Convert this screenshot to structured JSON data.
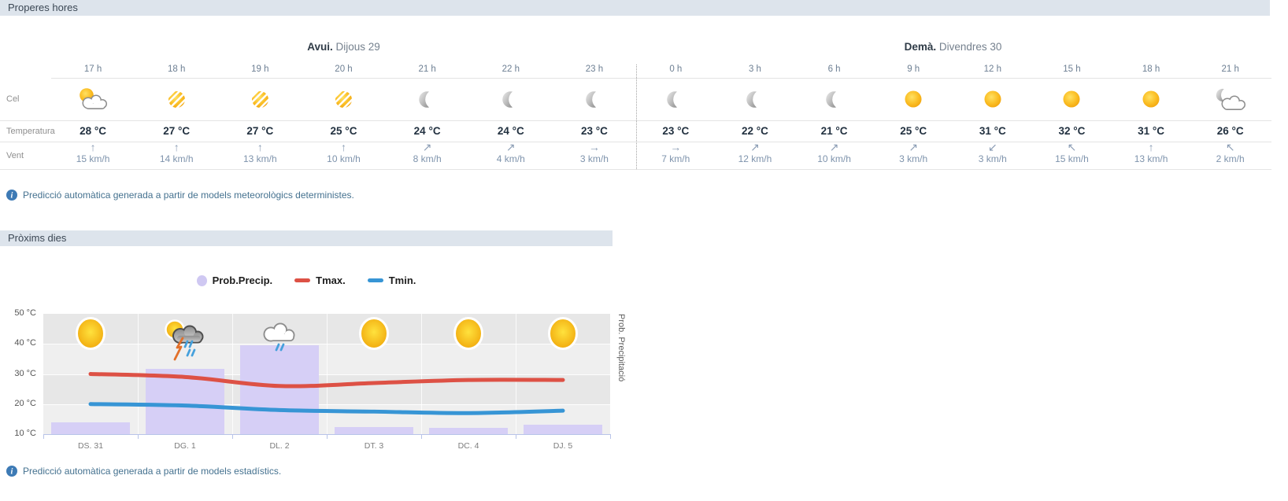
{
  "hourly": {
    "title": "Properes hores",
    "row_labels": {
      "sky": "Cel",
      "temperature": "Temperatura",
      "wind": "Vent"
    },
    "note": {
      "icon": "info",
      "text": "Predicció automàtica generada a partir de models meteorològics deterministes."
    },
    "today": {
      "label_bold": "Avui.",
      "label_rest": " Dijous 29",
      "columns": [
        {
          "hour": "17 h",
          "icon": "sun-cloud",
          "temp": "28 °C",
          "wind_dir": "↑",
          "wind_speed": "15 km/h"
        },
        {
          "hour": "18 h",
          "icon": "veiled-sun",
          "temp": "27 °C",
          "wind_dir": "↑",
          "wind_speed": "14 km/h"
        },
        {
          "hour": "19 h",
          "icon": "veiled-sun",
          "temp": "27 °C",
          "wind_dir": "↑",
          "wind_speed": "13 km/h"
        },
        {
          "hour": "20 h",
          "icon": "veiled-sun",
          "temp": "25 °C",
          "wind_dir": "↑",
          "wind_speed": "10 km/h"
        },
        {
          "hour": "21 h",
          "icon": "moon",
          "temp": "24 °C",
          "wind_dir": "↗",
          "wind_speed": "8 km/h"
        },
        {
          "hour": "22 h",
          "icon": "moon",
          "temp": "24 °C",
          "wind_dir": "↗",
          "wind_speed": "4 km/h"
        },
        {
          "hour": "23 h",
          "icon": "moon",
          "temp": "23 °C",
          "wind_dir": "→",
          "wind_speed": "3 km/h"
        }
      ]
    },
    "tomorrow": {
      "label_bold": "Demà.",
      "label_rest": " Divendres 30",
      "columns": [
        {
          "hour": "0 h",
          "icon": "moon",
          "temp": "23 °C",
          "wind_dir": "→",
          "wind_speed": "7 km/h"
        },
        {
          "hour": "3 h",
          "icon": "moon",
          "temp": "22 °C",
          "wind_dir": "↗",
          "wind_speed": "12 km/h"
        },
        {
          "hour": "6 h",
          "icon": "moon",
          "temp": "21 °C",
          "wind_dir": "↗",
          "wind_speed": "10 km/h"
        },
        {
          "hour": "9 h",
          "icon": "sun",
          "temp": "25 °C",
          "wind_dir": "↗",
          "wind_speed": "3 km/h"
        },
        {
          "hour": "12 h",
          "icon": "sun",
          "temp": "31 °C",
          "wind_dir": "↙",
          "wind_speed": "3 km/h"
        },
        {
          "hour": "15 h",
          "icon": "sun",
          "temp": "32 °C",
          "wind_dir": "↖",
          "wind_speed": "15 km/h"
        },
        {
          "hour": "18 h",
          "icon": "sun",
          "temp": "31 °C",
          "wind_dir": "↑",
          "wind_speed": "13 km/h"
        },
        {
          "hour": "21 h",
          "icon": "moon-cloud",
          "temp": "26 °C",
          "wind_dir": "↖",
          "wind_speed": "2 km/h"
        }
      ]
    }
  },
  "daily": {
    "title": "Pròxims dies",
    "legend": [
      {
        "label": "Prob.Precip.",
        "swatch": "dot",
        "color": "#cfc8f2"
      },
      {
        "label": "Tmax.",
        "swatch": "line",
        "color": "#dd5145"
      },
      {
        "label": "Tmin.",
        "swatch": "line",
        "color": "#3795d5"
      }
    ],
    "note": {
      "icon": "info",
      "text": "Predicció automàtica generada a partir de models estadístics."
    }
  },
  "chart_data": {
    "type": "bar+line",
    "categories": [
      "DS. 31",
      "DG. 1",
      "DL. 2",
      "DT. 3",
      "DC. 4",
      "DJ. 5"
    ],
    "day_icons": [
      "sun",
      "storm",
      "rain",
      "sun",
      "sun",
      "sun"
    ],
    "series": [
      {
        "name": "Prob.Precip.",
        "type": "bar",
        "unit": "%",
        "axis": "right",
        "color": "#d6cff6",
        "values": [
          10,
          54,
          74,
          6,
          5,
          8
        ]
      },
      {
        "name": "Tmax.",
        "type": "line",
        "unit": "°C",
        "axis": "left",
        "color": "#dd5145",
        "values": [
          30,
          29,
          26,
          27,
          28,
          28
        ]
      },
      {
        "name": "Tmin.",
        "type": "line",
        "unit": "°C",
        "axis": "left",
        "color": "#3795d5",
        "values": [
          20,
          19.5,
          18,
          17.5,
          17,
          17.8
        ]
      }
    ],
    "ylabel_right": "Prob. Precipitació",
    "y_ticks": [
      "50 °C",
      "40 °C",
      "30 °C",
      "20 °C",
      "10 °C"
    ],
    "ylim": [
      10,
      50
    ],
    "grid": true,
    "legend_position": "top"
  }
}
